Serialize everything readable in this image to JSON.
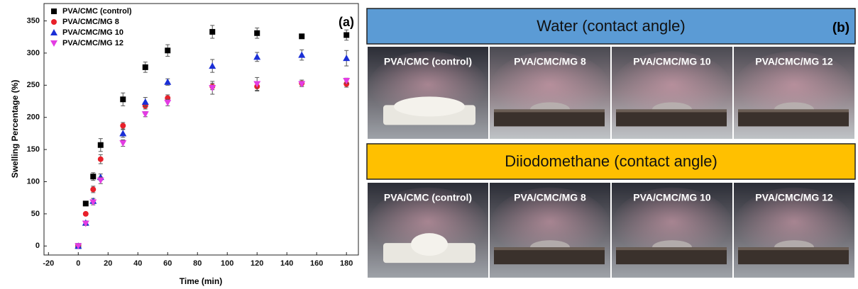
{
  "chart_data": {
    "type": "scatter",
    "x_label": "Time (min)",
    "y_label": "Swelling Percentage (%)",
    "annotation": "(a)",
    "x": [
      0,
      5,
      10,
      15,
      30,
      45,
      60,
      90,
      120,
      150,
      180
    ],
    "series": [
      {
        "name": "PVA/CMC (control)",
        "color": "#000000",
        "marker": "square",
        "values": [
          0,
          66,
          108,
          157,
          228,
          278,
          304,
          333,
          331,
          326,
          328
        ],
        "errors": [
          0,
          3,
          6,
          10,
          10,
          8,
          9,
          10,
          8,
          2,
          8
        ]
      },
      {
        "name": "PVA/CMC/MG 8",
        "color": "#e8202a",
        "marker": "circle",
        "values": [
          0,
          50,
          88,
          135,
          187,
          218,
          230,
          248,
          248,
          253,
          252
        ],
        "errors": [
          0,
          2,
          5,
          7,
          5,
          5,
          5,
          5,
          7,
          5,
          5
        ]
      },
      {
        "name": "PVA/CMC/MG 10",
        "color": "#1a2fd6",
        "marker": "triangle-up",
        "values": [
          0,
          36,
          70,
          107,
          175,
          224,
          255,
          280,
          294,
          297,
          292
        ],
        "errors": [
          0,
          3,
          4,
          5,
          6,
          7,
          5,
          10,
          7,
          8,
          12
        ]
      },
      {
        "name": "PVA/CMC/MG 12",
        "color": "#e33ce3",
        "marker": "triangle-down",
        "values": [
          0,
          35,
          68,
          102,
          160,
          205,
          223,
          246,
          252,
          252,
          257
        ],
        "errors": [
          0,
          3,
          4,
          5,
          5,
          4,
          5,
          10,
          10,
          4,
          4
        ]
      }
    ],
    "xlim": [
      -23,
      188
    ],
    "ylim": [
      -14,
      377
    ],
    "xticks": [
      -20,
      0,
      20,
      40,
      60,
      80,
      100,
      120,
      140,
      160,
      180
    ],
    "yticks": [
      0,
      50,
      100,
      150,
      200,
      250,
      300,
      350
    ],
    "legend": "upper left",
    "grid": false
  },
  "panel_b": {
    "label": "(b)",
    "sections": [
      {
        "title": "Water (contact angle)",
        "color": "#5b9bd5",
        "samples": [
          "PVA/CMC (control)",
          "PVA/CMC/MG 8",
          "PVA/CMC/MG 10",
          "PVA/CMC/MG 12"
        ]
      },
      {
        "title": "Diiodomethane (contact angle)",
        "color": "#ffc000",
        "samples": [
          "PVA/CMC (control)",
          "PVA/CMC/MG 8",
          "PVA/CMC/MG 10",
          "PVA/CMC/MG 12"
        ]
      }
    ]
  }
}
